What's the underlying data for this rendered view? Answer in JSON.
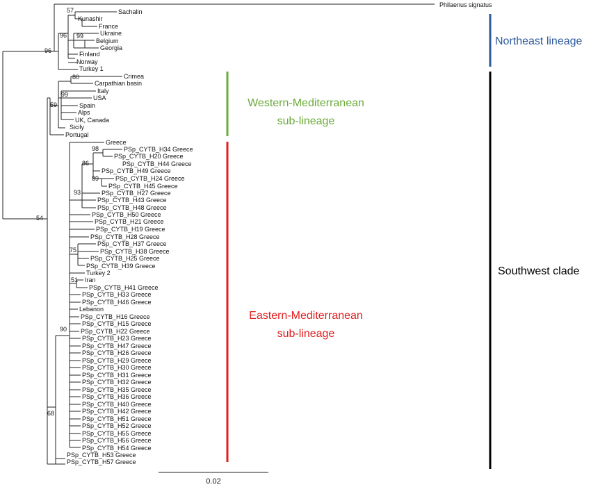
{
  "clades": {
    "northeast": {
      "label": "Northeast lineage",
      "color": "#2e5b9a"
    },
    "western": {
      "line1": "Western-Mediterranean",
      "line2": "sub-lineage",
      "color": "#6aab3a"
    },
    "eastern": {
      "line1": "Eastern-Mediterranean",
      "line2": "sub-lineage",
      "color": "#e21d1d"
    },
    "southwest": {
      "label": "Southwest clade",
      "color": "#000000"
    }
  },
  "scale_bar": {
    "label": "0.02"
  },
  "outgroup": "Philaenus signatus",
  "support_values": [
    "57",
    "99",
    "96",
    "96",
    "80",
    "99",
    "59",
    "54",
    "98",
    "86",
    "89",
    "93",
    "75",
    "51",
    "90",
    "68"
  ],
  "taxa": [
    "Sachalin",
    "Kunashir",
    "France",
    "Ukraine",
    "Belgium",
    "Georgia",
    "Finland",
    "Norway",
    "Turkey 1",
    "Crimea",
    "Carpathian basin",
    "Italy",
    "USA",
    "Spain",
    "Alps",
    "UK, Canada",
    "Sicily",
    "Portugal",
    "Greece",
    "PSp_CYTB_H34 Greece",
    "PSp_CYTB_H20 Greece",
    "PSp_CYTB_H44 Greece",
    "PSp_CYTB_H49 Greece",
    "PSp_CYTB_H24 Greece",
    "PSp_CYTB_H45 Greece",
    "PSp_CYTB_H27 Greece",
    "PSp_CYTB_H43 Greece",
    "PSp_CYTB_H48 Greece",
    "PSp_CYTB_H50 Greece",
    "PSp_CYTB_H21 Greece",
    "PSp_CYTB_H19 Greece",
    "PSp_CYTB_H28 Greece",
    "PSp_CYTB_H37 Greece",
    "PSp_CYTB_H38 Greece",
    "PSp_CYTB_H25 Greece",
    "PSp_CYTB_H39 Greece",
    "Turkey 2",
    "Iran",
    "PSp_CYTB_H41 Greece",
    "PSp_CYTB_H33 Greece",
    "PSp_CYTB_H46 Greece",
    "Lebanon",
    "PSp_CYTB_H16 Greece",
    "PSp_CYTB_H15 Greece",
    "PSp_CYTB_H22 Greece",
    "PSp_CYTB_H23 Greece",
    "PSp_CYTB_H47 Greece",
    "PSp_CYTB_H26 Greece",
    "PSp_CYTB_H29 Greece",
    "PSp_CYTB_H30 Greece",
    "PSp_CYTB_H31 Greece",
    "PSp_CYTB_H32 Greece",
    "PSp_CYTB_H35 Greece",
    "PSp_CYTB_H36 Greece",
    "PSp_CYTB_H40 Greece",
    "PSp_CYTB_H42 Greece",
    "PSp_CYTB_H51 Greece",
    "PSp_CYTB_H52 Greece",
    "PSp_CYTB_H55 Greece",
    "PSp_CYTB_H56 Greece",
    "PSp_CYTB_H54 Greece",
    "PSp_CYTB_H53 Greece",
    "PSp_CYTB_H57 Greece"
  ]
}
